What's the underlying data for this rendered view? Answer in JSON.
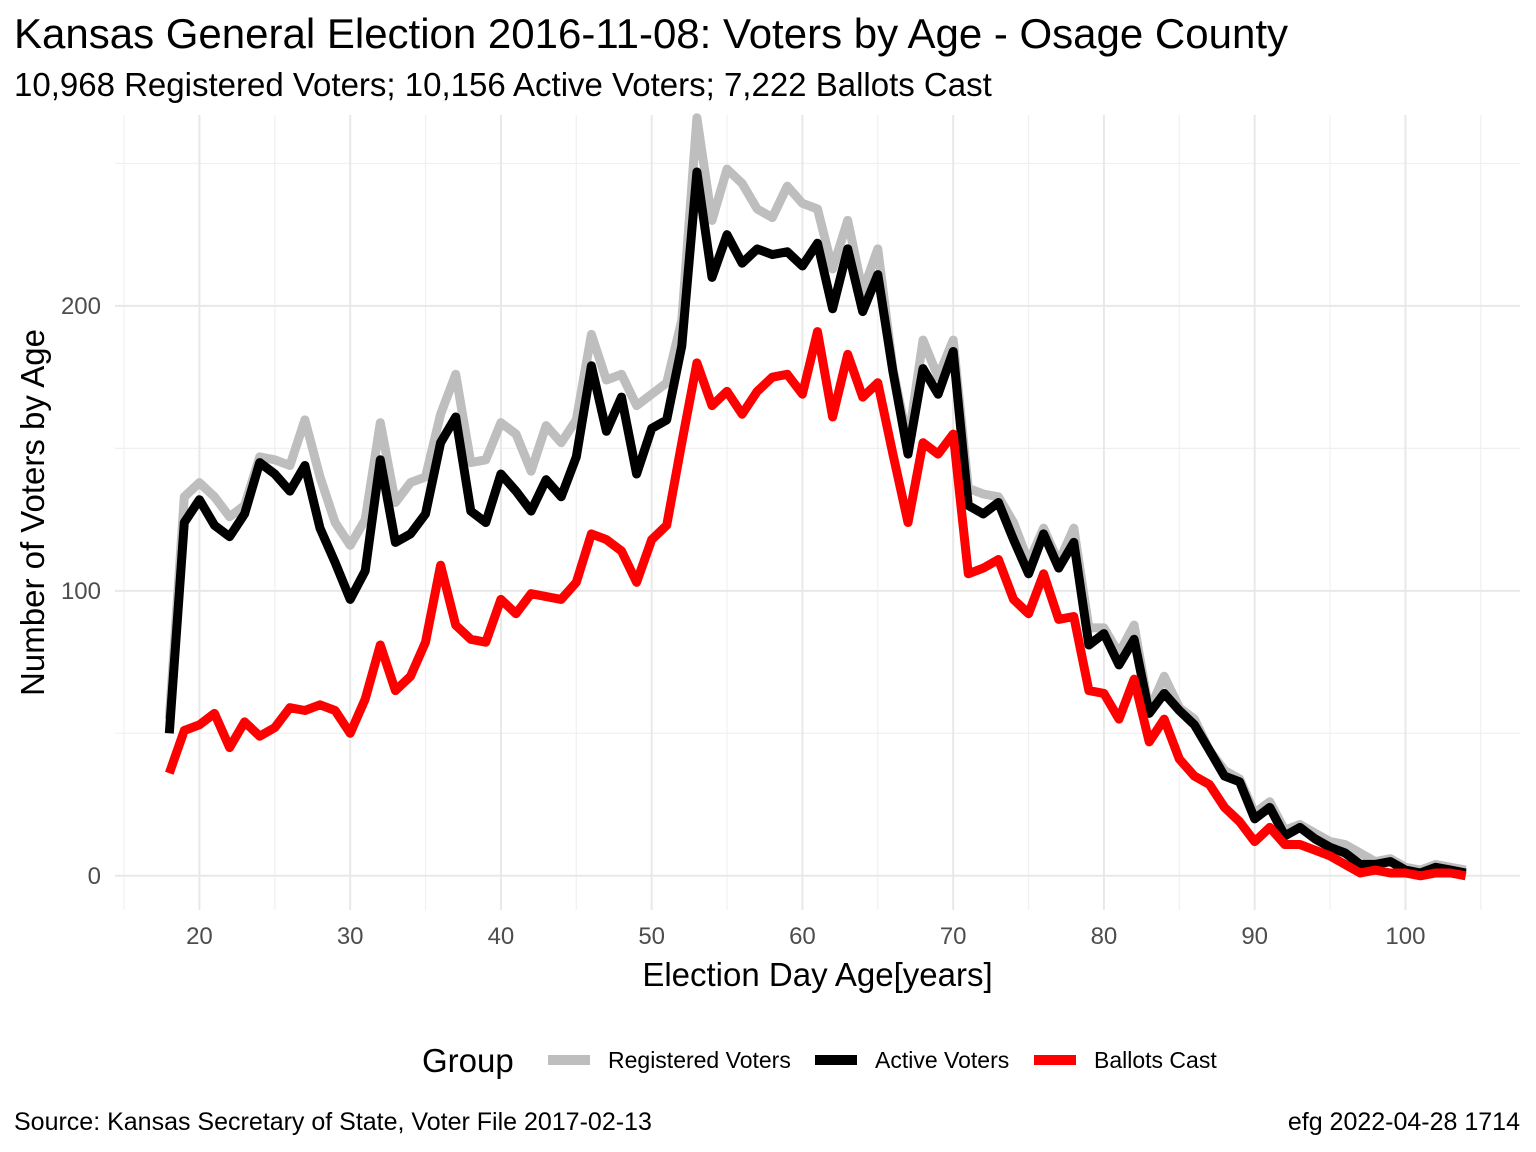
{
  "header": {
    "title": "Kansas General Election 2016-11-08:  Voters by Age - Osage County",
    "subtitle": "10,968 Registered Voters; 10,156 Active Voters; 7,222 Ballots Cast"
  },
  "footer": {
    "source": "Source:  Kansas Secretary of State, Voter File  2017-02-13",
    "credit": "efg 2022-04-28 1714"
  },
  "chart_data": {
    "type": "line",
    "title": "Kansas General Election 2016-11-08:  Voters by Age - Osage County",
    "subtitle": "10,968 Registered Voters; 10,156 Active Voters; 7,222 Ballots Cast",
    "xlabel": "Election Day Age[years]",
    "ylabel": "Number of Voters by Age",
    "xlim": [
      14.4,
      107.6
    ],
    "ylim": [
      -12,
      267
    ],
    "x_ticks": [
      20,
      30,
      40,
      50,
      60,
      70,
      80,
      90,
      100
    ],
    "y_ticks": [
      0,
      100,
      200
    ],
    "grid": true,
    "legend_title": "Group",
    "legend_position": "bottom",
    "x": [
      18,
      19,
      20,
      21,
      22,
      23,
      24,
      25,
      26,
      27,
      28,
      29,
      30,
      31,
      32,
      33,
      34,
      35,
      36,
      37,
      38,
      39,
      40,
      41,
      42,
      43,
      44,
      45,
      46,
      47,
      48,
      49,
      50,
      51,
      52,
      53,
      54,
      55,
      56,
      57,
      58,
      59,
      60,
      61,
      62,
      63,
      64,
      65,
      66,
      67,
      68,
      69,
      70,
      71,
      72,
      73,
      74,
      75,
      76,
      77,
      78,
      79,
      80,
      81,
      82,
      83,
      84,
      85,
      86,
      87,
      88,
      89,
      90,
      91,
      92,
      93,
      94,
      95,
      96,
      97,
      98,
      99,
      100,
      101,
      102,
      103,
      104
    ],
    "series": [
      {
        "name": "Registered Voters",
        "color": "#bebebe",
        "values": [
          55,
          133,
          138,
          133,
          126,
          130,
          147,
          146,
          144,
          160,
          140,
          124,
          116,
          125,
          159,
          131,
          138,
          140,
          162,
          176,
          145,
          146,
          159,
          155,
          142,
          158,
          152,
          160,
          190,
          174,
          176,
          165,
          169,
          173,
          195,
          266,
          230,
          248,
          243,
          234,
          231,
          242,
          236,
          234,
          213,
          230,
          205,
          220,
          178,
          152,
          188,
          175,
          188,
          136,
          134,
          133,
          124,
          110,
          122,
          110,
          122,
          87,
          87,
          78,
          88,
          58,
          70,
          59,
          55,
          44,
          37,
          34,
          22,
          26,
          16,
          18,
          15,
          12,
          11,
          8,
          5,
          6,
          3,
          2,
          4,
          3,
          2
        ]
      },
      {
        "name": "Active Voters",
        "color": "#000000",
        "values": [
          50,
          124,
          132,
          123,
          119,
          127,
          145,
          141,
          135,
          144,
          122,
          110,
          97,
          107,
          146,
          117,
          120,
          127,
          152,
          161,
          128,
          124,
          141,
          135,
          128,
          139,
          133,
          147,
          179,
          156,
          168,
          141,
          157,
          160,
          186,
          247,
          210,
          225,
          215,
          220,
          218,
          219,
          214,
          222,
          199,
          220,
          198,
          211,
          177,
          148,
          178,
          169,
          184,
          130,
          127,
          131,
          118,
          106,
          120,
          108,
          117,
          81,
          85,
          74,
          83,
          57,
          64,
          58,
          53,
          44,
          35,
          33,
          20,
          24,
          14,
          17,
          13,
          10,
          8,
          4,
          4,
          5,
          2,
          1,
          3,
          2,
          1
        ]
      },
      {
        "name": "Ballots Cast",
        "color": "#ff0000",
        "values": [
          36,
          51,
          53,
          57,
          45,
          54,
          49,
          52,
          59,
          58,
          60,
          58,
          50,
          62,
          81,
          65,
          70,
          82,
          109,
          88,
          83,
          82,
          97,
          92,
          99,
          98,
          97,
          103,
          120,
          118,
          114,
          103,
          118,
          123,
          152,
          180,
          165,
          170,
          162,
          170,
          175,
          176,
          169,
          191,
          161,
          183,
          168,
          173,
          148,
          124,
          152,
          148,
          155,
          106,
          108,
          111,
          97,
          92,
          106,
          90,
          91,
          65,
          64,
          55,
          69,
          47,
          55,
          41,
          35,
          32,
          24,
          19,
          12,
          17,
          11,
          11,
          9,
          7,
          4,
          1,
          2,
          1,
          1,
          0,
          1,
          1,
          0
        ]
      }
    ]
  }
}
